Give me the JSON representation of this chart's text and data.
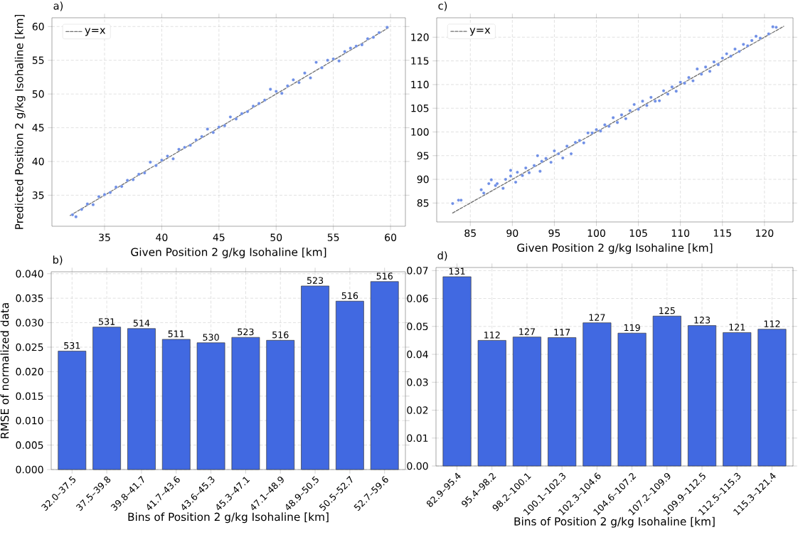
{
  "chart_data": [
    {
      "type": "scatter",
      "title": "a)",
      "xlabel": "Given Position 2 g/kg Isohaline [km]",
      "ylabel": "Predicted Position 2 g/kg Isohaline [km]",
      "xlim": [
        30.4,
        61.3
      ],
      "ylim": [
        30.4,
        61.3
      ],
      "xticks": [
        35,
        40,
        45,
        50,
        55,
        60
      ],
      "yticks": [
        35,
        40,
        45,
        50,
        55,
        60
      ],
      "grid": true,
      "legend": "top left",
      "series": [
        {
          "type": "scatter",
          "color": "#6f8fe6",
          "marker": "circle",
          "x": [
            32.2,
            32.5,
            33,
            33.5,
            34,
            34.5,
            35,
            35.5,
            36,
            36.5,
            37,
            37.5,
            38,
            38.5,
            39,
            39.5,
            40,
            40.5,
            41,
            41.5,
            42,
            42.5,
            43,
            43.5,
            44,
            44.5,
            45,
            45.5,
            46,
            46.5,
            47,
            47.5,
            48,
            48.5,
            49,
            49.5,
            50,
            50.5,
            51,
            51.5,
            52,
            52.5,
            53,
            53.5,
            54,
            54.5,
            55,
            55.5,
            56,
            56.5,
            57,
            57.5,
            58,
            58.5,
            59,
            59.7
          ],
          "values": [
            32.1,
            31.8,
            32.9,
            33.7,
            33.6,
            34.8,
            35.1,
            35.4,
            36.2,
            36.3,
            37.2,
            37.3,
            38.1,
            38.3,
            39.9,
            39.4,
            40.2,
            40.8,
            40.4,
            41.8,
            42.1,
            42.4,
            43.2,
            43.7,
            44.8,
            44.3,
            45.1,
            45.3,
            46.6,
            46.3,
            47.1,
            47.4,
            48.2,
            48.6,
            49.1,
            50.7,
            50.4,
            50.1,
            51.2,
            52.1,
            51.7,
            53.1,
            52.4,
            54.7,
            53.9,
            55.0,
            55.2,
            54.9,
            56.3,
            56.8,
            57.1,
            57.3,
            58.2,
            58.4,
            59.1,
            59.9
          ]
        },
        {
          "type": "line",
          "name": "y=x",
          "color": "#707070",
          "line_style": "dashed",
          "x": [
            32.0,
            59.8
          ],
          "values": [
            32.0,
            59.8
          ]
        }
      ]
    },
    {
      "type": "bar",
      "title": "b)",
      "xlabel": "Bins of Position 2 g/kg Isohaline [km]",
      "ylabel": "RMSE of normalized data",
      "ylim": [
        0,
        0.0404
      ],
      "yticks": [
        {
          "value": 0,
          "label": "0.000"
        },
        0.005,
        {
          "value": 0.01,
          "label": "0.010"
        },
        0.015,
        {
          "value": 0.02,
          "label": "0.020"
        },
        0.025,
        {
          "value": 0.03,
          "label": "0.030"
        },
        0.035,
        {
          "value": 0.04,
          "label": "0.040"
        }
      ],
      "grid": true,
      "categories": [
        "32.0–37.5",
        "37.5–39.8",
        "39.8–41.7",
        "41.7–43.6",
        "43.6–45.3",
        "45.3–47.1",
        "47.1–48.9",
        "48.9–50.5",
        "50.5–52.7",
        "52.7–59.6"
      ],
      "series": [
        {
          "color": "#4169e1",
          "values": [
            0.0242,
            0.0291,
            0.0288,
            0.0266,
            0.0259,
            0.027,
            0.0264,
            0.0375,
            0.0344,
            0.0384
          ]
        }
      ],
      "annotations": [
        {
          "text": "531",
          "x": "32.0–37.5",
          "y": 0.0242
        },
        {
          "text": "531",
          "x": "37.5–39.8",
          "y": 0.0291
        },
        {
          "text": "514",
          "x": "39.8–41.7",
          "y": 0.0288
        },
        {
          "text": "511",
          "x": "41.7–43.6",
          "y": 0.0266
        },
        {
          "text": "530",
          "x": "43.6–45.3",
          "y": 0.0259
        },
        {
          "text": "523",
          "x": "45.3–47.1",
          "y": 0.027
        },
        {
          "text": "516",
          "x": "47.1–48.9",
          "y": 0.0264
        },
        {
          "text": "523",
          "x": "48.9–50.5",
          "y": 0.0375
        },
        {
          "text": "516",
          "x": "50.5–52.7",
          "y": 0.0344
        },
        {
          "text": "516",
          "x": "52.7–59.6",
          "y": 0.0384
        }
      ]
    },
    {
      "type": "scatter",
      "title": "c)",
      "xlabel": "Given Position 2 g/kg Isohaline [km]",
      "xlim": [
        81.0,
        123.4
      ],
      "ylim": [
        81.0,
        124.1
      ],
      "xticks": [
        85,
        90,
        95,
        100,
        105,
        110,
        115,
        120
      ],
      "yticks": [
        85,
        90,
        95,
        100,
        105,
        110,
        115,
        120
      ],
      "grid": true,
      "legend": "top left",
      "series": [
        {
          "type": "scatter",
          "color": "#6f8fe6",
          "marker": "circle",
          "x": [
            82.9,
            83.6,
            83.9,
            86.3,
            86.6,
            87.2,
            87.5,
            88,
            88.2,
            88.9,
            89.2,
            89.8,
            89.8,
            90.4,
            90.6,
            91.2,
            91.6,
            92,
            92.6,
            93,
            93.3,
            93.5,
            94,
            94.6,
            95,
            95.5,
            96,
            96.5,
            97,
            97.5,
            98,
            98.5,
            99,
            99.5,
            100,
            100.5,
            101,
            101.5,
            102,
            102.5,
            103,
            103.5,
            104,
            104.5,
            105,
            105.5,
            106,
            106.5,
            107,
            107.5,
            108,
            108.5,
            109,
            109.5,
            110,
            110.5,
            111,
            111.5,
            112,
            112.5,
            113,
            113.5,
            114,
            114.5,
            115,
            115.5,
            116,
            116.5,
            117,
            117.5,
            118,
            118.5,
            119,
            119.5,
            120.5,
            121,
            121.4
          ],
          "values": [
            84.9,
            85.6,
            85.6,
            87.8,
            87.1,
            89.1,
            89.9,
            88.7,
            89.1,
            88.1,
            90,
            90.7,
            91.9,
            89.4,
            91.5,
            90.8,
            92.4,
            91.4,
            92.9,
            95,
            91.7,
            93.8,
            94.4,
            93.6,
            96,
            95.4,
            94.5,
            97,
            95.4,
            97.8,
            98.2,
            97.7,
            99.8,
            99.8,
            100.5,
            100.2,
            101.5,
            101.2,
            103,
            102,
            103.6,
            102.8,
            104.5,
            105.8,
            104.8,
            106.5,
            105.6,
            107.3,
            106.5,
            106.6,
            108.7,
            108,
            109.5,
            108.6,
            110.5,
            110.3,
            111.5,
            110.8,
            113.3,
            112.2,
            113.7,
            112.8,
            114.8,
            114.2,
            115.6,
            116.5,
            116,
            117.5,
            117,
            118.5,
            118.2,
            119.3,
            120.2,
            119.8,
            120.7,
            122.2,
            122.1
          ]
        },
        {
          "type": "line",
          "name": "y=x",
          "color": "#707070",
          "line_style": "dashed",
          "x": [
            82.9,
            122.3
          ],
          "values": [
            82.9,
            122.3
          ]
        }
      ]
    },
    {
      "type": "bar",
      "title": "d)",
      "xlabel": "Bins of Position 2 g/kg Isohaline [km]",
      "ylim": [
        0,
        0.0711
      ],
      "yticks": [
        {
          "value": 0,
          "label": "0.00"
        },
        0.01,
        0.02,
        0.03,
        0.04,
        0.05,
        0.06,
        0.07
      ],
      "grid": true,
      "categories": [
        "82.9–95.4",
        "95.4–98.2",
        "98.2–100.1",
        "100.1–102.3",
        "102.3–104.6",
        "104.6–107.2",
        "107.2–109.9",
        "109.9–112.5",
        "112.5–115.3",
        "115.3–121.4"
      ],
      "series": [
        {
          "color": "#4169e1",
          "values": [
            0.0678,
            0.045,
            0.0462,
            0.046,
            0.0513,
            0.0476,
            0.0537,
            0.0503,
            0.0478,
            0.049
          ]
        }
      ],
      "annotations": [
        {
          "text": "131",
          "x": "82.9–95.4",
          "y": 0.0678
        },
        {
          "text": "112",
          "x": "95.4–98.2",
          "y": 0.045
        },
        {
          "text": "127",
          "x": "98.2–100.1",
          "y": 0.0462
        },
        {
          "text": "117",
          "x": "100.1–102.3",
          "y": 0.046
        },
        {
          "text": "127",
          "x": "102.3–104.6",
          "y": 0.0513
        },
        {
          "text": "119",
          "x": "104.6–107.2",
          "y": 0.0476
        },
        {
          "text": "125",
          "x": "107.2–109.9",
          "y": 0.0537
        },
        {
          "text": "123",
          "x": "109.9–112.5",
          "y": 0.0503
        },
        {
          "text": "121",
          "x": "112.5–115.3",
          "y": 0.0478
        },
        {
          "text": "112",
          "x": "115.3–121.4",
          "y": 0.049
        }
      ]
    }
  ]
}
